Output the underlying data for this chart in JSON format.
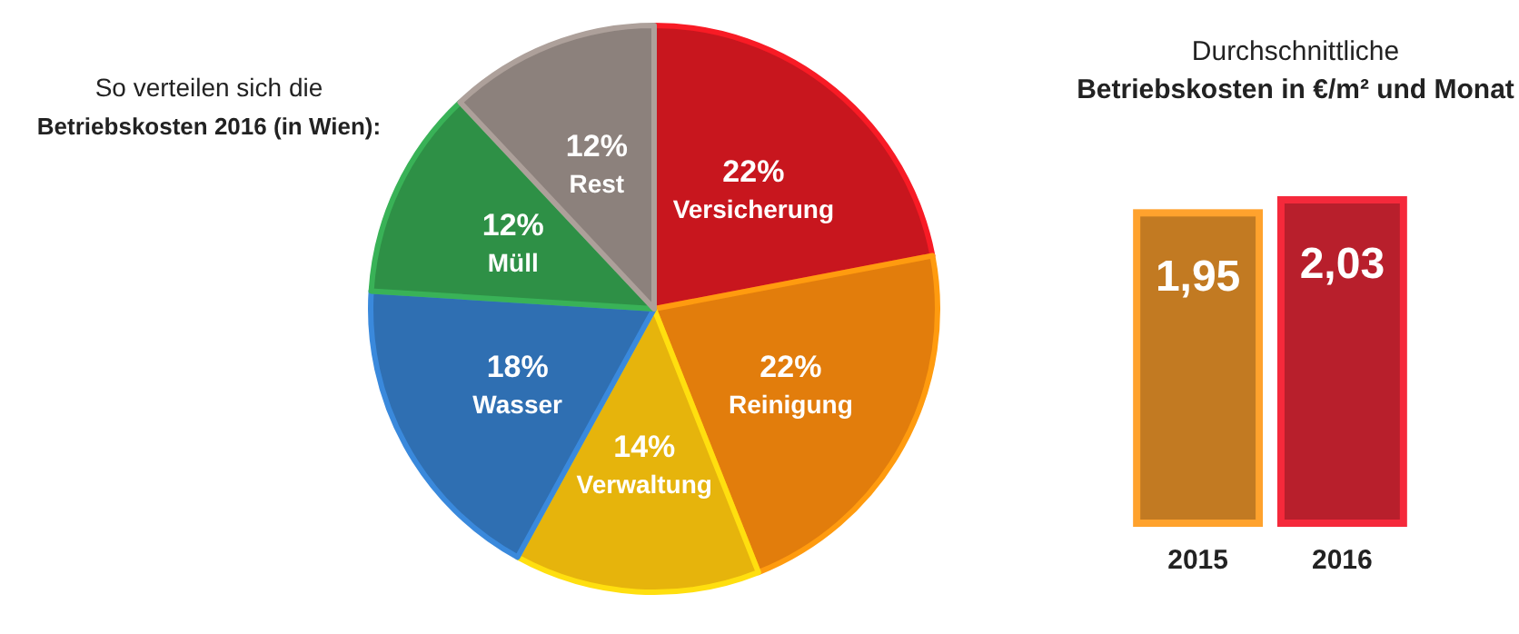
{
  "chart_data": [
    {
      "type": "pie",
      "title": "So verteilen sich die",
      "subtitle": "Betriebskosten 2016 (in Wien):",
      "categories": [
        "Versicherung",
        "Reinigung",
        "Verwaltung",
        "Wasser",
        "Müll",
        "Rest"
      ],
      "values": [
        22,
        22,
        14,
        18,
        12,
        12
      ],
      "value_labels": [
        "22%",
        "22%",
        "14%",
        "18%",
        "12%",
        "12%"
      ],
      "colors": [
        "#c8161e",
        "#e27d0c",
        "#e6b40c",
        "#2f6fb2",
        "#2e9046",
        "#8c817c"
      ]
    },
    {
      "type": "bar",
      "title": "Durchschnittliche",
      "subtitle": "Betriebskosten in €/m² und Monat",
      "categories": [
        "2015",
        "2016"
      ],
      "values": [
        1.95,
        2.03
      ],
      "value_labels": [
        "1,95",
        "2,03"
      ],
      "colors": [
        "#c27a22",
        "#b81f2c"
      ]
    }
  ]
}
